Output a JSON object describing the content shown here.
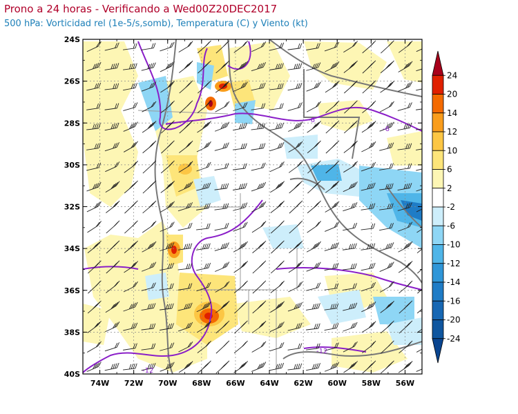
{
  "title": "Prono a 24 horas - Verificando a Wed00Z20DEC2017",
  "subtitle": "500 hPa: Vorticidad rel (1e-5/s,somb), Temperatura (C) y Viento (kt)",
  "map": {
    "lon_range": [
      -75,
      -55
    ],
    "lat_range": [
      -40,
      -24
    ],
    "lon_ticks": [
      "74W",
      "72W",
      "70W",
      "68W",
      "66W",
      "64W",
      "62W",
      "60W",
      "58W",
      "56W"
    ],
    "lat_ticks": [
      "24S",
      "26S",
      "28S",
      "30S",
      "32S",
      "34S",
      "36S",
      "38S",
      "40S"
    ],
    "contour_labels": [
      "-6",
      "-6",
      "-12",
      "-12"
    ]
  },
  "colorbar": {
    "labels": [
      "24",
      "20",
      "14",
      "12",
      "10",
      "6",
      "2",
      "-2",
      "-6",
      "-10",
      "-12",
      "-14",
      "-16",
      "-20",
      "-24"
    ],
    "colors": [
      "#a8001a",
      "#e02000",
      "#f46a00",
      "#f99d1c",
      "#fcc644",
      "#fde57a",
      "#fdf6b4",
      "#ffffff",
      "#cdeefb",
      "#8ed6f5",
      "#4fb5e8",
      "#2f96d8",
      "#1f7cc6",
      "#1767b3",
      "#0f569f",
      "#0a4590"
    ]
  }
}
